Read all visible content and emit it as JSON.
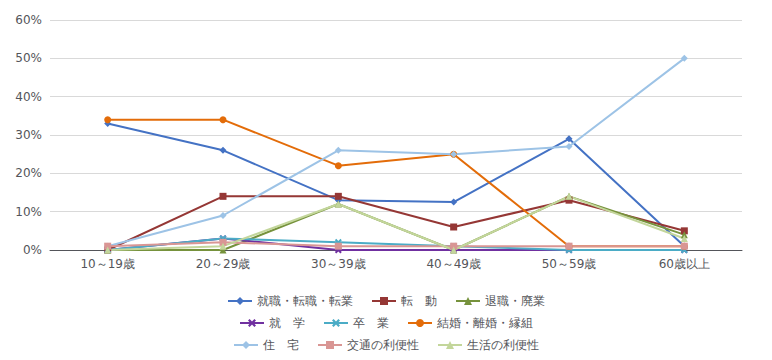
{
  "chart_data": {
    "type": "line",
    "categories": [
      "10～19歳",
      "20～29歳",
      "30～39歳",
      "40～49歳",
      "50～59歳",
      "60歳以上"
    ],
    "series": [
      {
        "name": "就職・転職・転業",
        "color": "#4472C4",
        "marker": "diamond",
        "values": [
          33,
          26,
          13,
          12.5,
          29,
          1
        ]
      },
      {
        "name": "転　動",
        "color": "#953735",
        "marker": "square",
        "values": [
          0,
          14,
          14,
          6,
          13,
          5
        ]
      },
      {
        "name": "退職・廃業",
        "color": "#76923C",
        "marker": "triangle",
        "values": [
          0,
          0,
          12,
          0,
          14,
          4
        ]
      },
      {
        "name": "就　学",
        "color": "#7030A0",
        "marker": "x",
        "values": [
          0,
          3,
          0,
          0,
          0,
          0
        ]
      },
      {
        "name": "卒　業",
        "color": "#4BACC6",
        "marker": "x",
        "values": [
          0,
          3,
          2,
          1,
          0,
          0
        ]
      },
      {
        "name": "結婚・離婚・縁組",
        "color": "#E36C09",
        "marker": "circle",
        "values": [
          34,
          34,
          22,
          25,
          1,
          1
        ]
      },
      {
        "name": "住　宅",
        "color": "#9DC3E6",
        "marker": "diamond",
        "values": [
          1,
          9,
          26,
          25,
          27,
          50
        ]
      },
      {
        "name": "交通の利便性",
        "color": "#D99694",
        "marker": "square",
        "values": [
          1,
          2,
          1,
          1,
          1,
          1
        ]
      },
      {
        "name": "生活の利便性",
        "color": "#C3D69B",
        "marker": "triangle",
        "values": [
          0,
          1,
          12,
          0,
          14,
          3
        ]
      }
    ],
    "ylim": [
      0,
      60
    ],
    "yticks": [
      {
        "value": 0,
        "label": "0%"
      },
      {
        "value": 10,
        "label": "10%"
      },
      {
        "value": 20,
        "label": "20%"
      },
      {
        "value": 30,
        "label": "30%"
      },
      {
        "value": 40,
        "label": "40%"
      },
      {
        "value": 50,
        "label": "50%"
      },
      {
        "value": 60,
        "label": "60%"
      }
    ],
    "grid": true,
    "legend": "bottom"
  }
}
